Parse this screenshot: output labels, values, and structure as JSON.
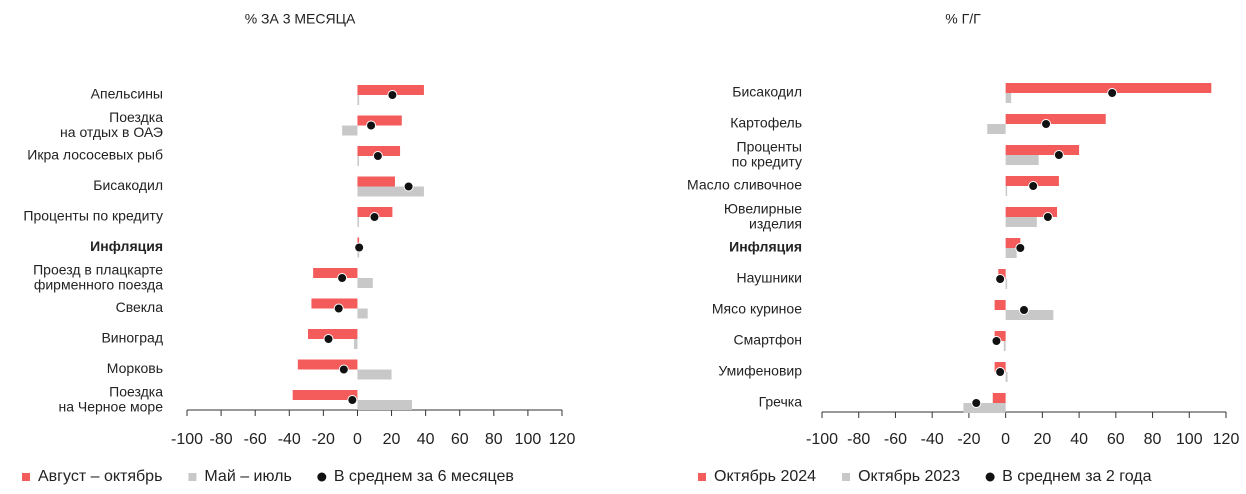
{
  "chart_data": [
    {
      "type": "bar",
      "title": "% ЗА 3 МЕСЯЦА",
      "categories": [
        "Апельсины",
        "Поездка\nна отдых в ОАЭ",
        "Икра лососевых рыб",
        "Бисакодил",
        "Проценты по кредиту",
        "Инфляция",
        "Проезд в плацкарте\nфирменного поезда",
        "Свекла",
        "Виноград",
        "Морковь",
        "Поездка\nна Черное море"
      ],
      "emphasized": [
        5
      ],
      "series": [
        {
          "name": "Август – октябрь",
          "color": "#f45b5b",
          "kind": "bar",
          "values": [
            39,
            26,
            25,
            22,
            20.5,
            1,
            -26,
            -27,
            -29,
            -35,
            -38
          ]
        },
        {
          "name": "Май – июль",
          "color": "#c8c8c8",
          "kind": "bar",
          "values": [
            1,
            -9,
            0,
            39,
            0,
            1,
            9,
            6,
            -2,
            20,
            32
          ]
        },
        {
          "name": "В среднем за 6 месяцев",
          "color": "#111111",
          "kind": "dot",
          "values": [
            20.5,
            8,
            12,
            30,
            10,
            1,
            -9,
            -11,
            -17,
            -8,
            -3
          ]
        }
      ],
      "xlim": [
        -100,
        120
      ],
      "xticks": [
        -100,
        -80,
        -60,
        -40,
        -20,
        0,
        20,
        40,
        60,
        80,
        100,
        120
      ],
      "legend": "bottom"
    },
    {
      "type": "bar",
      "title": "% Г/Г",
      "categories": [
        "Бисакодил",
        "Картофель",
        "Проценты\nпо кредиту",
        "Масло сливочное",
        "Ювелирные\nизделия",
        "Инфляция",
        "Наушники",
        "Мясо куриное",
        "Смартфон",
        "Умифеновир",
        "Гречка"
      ],
      "emphasized": [
        5
      ],
      "series": [
        {
          "name": "Октябрь 2024",
          "color": "#f45b5b",
          "kind": "bar",
          "values": [
            112,
            54.5,
            40,
            29,
            28,
            8,
            -4,
            -6,
            -6,
            -6,
            -7
          ]
        },
        {
          "name": "Октябрь 2023",
          "color": "#c8c8c8",
          "kind": "bar",
          "values": [
            3,
            -10,
            18,
            0,
            17,
            6,
            0,
            26,
            -1,
            1,
            -23
          ]
        },
        {
          "name": "В среднем за 2 года",
          "color": "#111111",
          "kind": "dot",
          "values": [
            58,
            22,
            29,
            15,
            23,
            8,
            -3,
            10,
            -5,
            -3,
            -16
          ]
        }
      ],
      "xlim": [
        -100,
        120
      ],
      "xticks": [
        -100,
        -80,
        -60,
        -40,
        -20,
        0,
        20,
        40,
        60,
        80,
        100,
        120
      ],
      "legend": "bottom"
    }
  ]
}
